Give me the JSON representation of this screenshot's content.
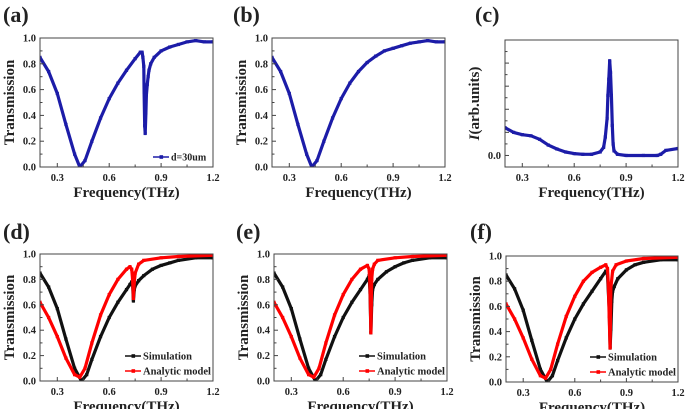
{
  "chart_data": [
    {
      "panel": "(a)",
      "type": "line",
      "xlabel": "Frequency(THz)",
      "ylabel": "Transmission",
      "xlim": [
        0.2,
        1.2
      ],
      "ylim": [
        0,
        1.0
      ],
      "xticks": [
        0.3,
        0.6,
        0.9,
        1.2
      ],
      "xtick_labels": [
        "0.3",
        "0.6",
        "0.9",
        "1.2"
      ],
      "yticks": [
        0,
        0.2,
        0.4,
        0.6,
        0.8,
        1.0
      ],
      "ytick_labels": [
        "0.0",
        "0.2",
        "0.4",
        "0.6",
        "0.8",
        "1.0"
      ],
      "legend_position": "bottom-right",
      "series": [
        {
          "name": "d=30um",
          "color": "#1c1ca8",
          "x": [
            0.2,
            0.25,
            0.3,
            0.35,
            0.4,
            0.43,
            0.46,
            0.5,
            0.55,
            0.6,
            0.65,
            0.7,
            0.75,
            0.78,
            0.79,
            0.795,
            0.8,
            0.802,
            0.805,
            0.808,
            0.812,
            0.815,
            0.82,
            0.825,
            0.83,
            0.84,
            0.86,
            0.9,
            0.95,
            1.0,
            1.05,
            1.1,
            1.15,
            1.2
          ],
          "y": [
            0.85,
            0.74,
            0.57,
            0.33,
            0.1,
            0.0,
            0.05,
            0.2,
            0.38,
            0.53,
            0.65,
            0.75,
            0.84,
            0.89,
            0.89,
            0.85,
            0.78,
            0.58,
            0.32,
            0.26,
            0.42,
            0.56,
            0.64,
            0.7,
            0.75,
            0.8,
            0.85,
            0.9,
            0.93,
            0.95,
            0.97,
            0.98,
            0.97,
            0.97
          ]
        }
      ]
    },
    {
      "panel": "(b)",
      "type": "line",
      "xlabel": "Frequency(THz)",
      "ylabel": "Transmission",
      "xlim": [
        0.2,
        1.2
      ],
      "ylim": [
        0,
        1.0
      ],
      "xticks": [
        0.3,
        0.6,
        0.9,
        1.2
      ],
      "xtick_labels": [
        "0.3",
        "0.6",
        "0.9",
        "1.2"
      ],
      "yticks": [
        0,
        0.2,
        0.4,
        0.6,
        0.8,
        1.0
      ],
      "ytick_labels": [
        "0.0",
        "0.2",
        "0.4",
        "0.6",
        "0.8",
        "1.0"
      ],
      "series": [
        {
          "color": "#1c1ca8",
          "x": [
            0.2,
            0.25,
            0.3,
            0.35,
            0.4,
            0.43,
            0.46,
            0.5,
            0.55,
            0.6,
            0.65,
            0.7,
            0.75,
            0.8,
            0.85,
            0.9,
            0.95,
            1.0,
            1.05,
            1.1,
            1.15,
            1.2
          ],
          "y": [
            0.85,
            0.74,
            0.57,
            0.33,
            0.1,
            0.0,
            0.05,
            0.2,
            0.38,
            0.53,
            0.65,
            0.74,
            0.81,
            0.86,
            0.9,
            0.92,
            0.94,
            0.96,
            0.97,
            0.98,
            0.97,
            0.97
          ]
        }
      ]
    },
    {
      "panel": "(c)",
      "type": "line",
      "xlabel": "Frequency(THz)",
      "ylabel_italic": "I",
      "ylabel": "(arb.units)",
      "xlim": [
        0.2,
        1.2
      ],
      "ylim": [
        -0.5,
        5
      ],
      "xticks": [
        0.3,
        0.6,
        0.9,
        1.2
      ],
      "xtick_labels": [
        "0.3",
        "0.6",
        "0.9",
        "1.2"
      ],
      "yticks": [
        0,
        1,
        2,
        3,
        4
      ],
      "ytick_labels": [
        "0.0",
        "",
        "",
        "",
        ""
      ],
      "series": [
        {
          "color": "#1c1ca8",
          "x": [
            0.2,
            0.25,
            0.3,
            0.35,
            0.4,
            0.45,
            0.5,
            0.55,
            0.6,
            0.65,
            0.7,
            0.75,
            0.77,
            0.78,
            0.79,
            0.795,
            0.8,
            0.805,
            0.81,
            0.815,
            0.82,
            0.825,
            0.83,
            0.85,
            0.9,
            1.0,
            1.08,
            1.1,
            1.13,
            1.2
          ],
          "y": [
            1.2,
            1.0,
            0.9,
            0.85,
            0.7,
            0.45,
            0.28,
            0.15,
            0.08,
            0.05,
            0.05,
            0.15,
            0.35,
            0.8,
            1.6,
            2.6,
            3.3,
            4.1,
            3.6,
            2.6,
            1.3,
            0.5,
            0.2,
            0.05,
            0.0,
            0.0,
            0.0,
            0.05,
            0.22,
            0.3
          ]
        }
      ]
    },
    {
      "panel": "(d)",
      "type": "line",
      "xlabel": "Frequency(THz)",
      "ylabel": "Transmission",
      "xlim": [
        0.2,
        1.2
      ],
      "ylim": [
        0,
        1.0
      ],
      "xticks": [
        0.3,
        0.6,
        0.9,
        1.2
      ],
      "xtick_labels": [
        "0.3",
        "0.6",
        "0.9",
        "1.2"
      ],
      "yticks": [
        0,
        0.2,
        0.4,
        0.6,
        0.8,
        1.0
      ],
      "ytick_labels": [
        "0.0",
        "0.2",
        "0.4",
        "0.6",
        "0.8",
        "1.0"
      ],
      "legend_position": "bottom-right",
      "series": [
        {
          "name": "Simulation",
          "color": "#111111",
          "x": [
            0.2,
            0.25,
            0.3,
            0.35,
            0.4,
            0.44,
            0.47,
            0.5,
            0.55,
            0.6,
            0.65,
            0.7,
            0.72,
            0.73,
            0.735,
            0.74,
            0.745,
            0.75,
            0.77,
            0.8,
            0.85,
            0.9,
            0.95,
            1.0,
            1.1,
            1.2
          ],
          "y": [
            0.85,
            0.74,
            0.57,
            0.33,
            0.1,
            0.0,
            0.05,
            0.17,
            0.35,
            0.5,
            0.62,
            0.72,
            0.76,
            0.78,
            0.76,
            0.63,
            0.72,
            0.75,
            0.79,
            0.83,
            0.88,
            0.91,
            0.93,
            0.95,
            0.97,
            0.97
          ]
        },
        {
          "name": "Analytic model",
          "color": "#ff0000",
          "x": [
            0.2,
            0.25,
            0.3,
            0.35,
            0.4,
            0.43,
            0.46,
            0.5,
            0.55,
            0.6,
            0.65,
            0.7,
            0.72,
            0.73,
            0.735,
            0.74,
            0.745,
            0.75,
            0.77,
            0.8,
            0.9,
            1.0,
            1.2
          ],
          "y": [
            0.62,
            0.5,
            0.35,
            0.18,
            0.05,
            0.03,
            0.1,
            0.3,
            0.52,
            0.68,
            0.8,
            0.88,
            0.9,
            0.88,
            0.8,
            0.65,
            0.78,
            0.85,
            0.92,
            0.95,
            0.97,
            0.98,
            0.99
          ]
        }
      ]
    },
    {
      "panel": "(e)",
      "type": "line",
      "xlabel": "Frequency(THz)",
      "ylabel": "Transmission",
      "xlim": [
        0.2,
        1.2
      ],
      "ylim": [
        0,
        1.0
      ],
      "xticks": [
        0.3,
        0.6,
        0.9,
        1.2
      ],
      "xtick_labels": [
        "0.3",
        "0.6",
        "0.9",
        "1.2"
      ],
      "yticks": [
        0,
        0.2,
        0.4,
        0.6,
        0.8,
        1.0
      ],
      "ytick_labels": [
        "0.0",
        "0.2",
        "0.4",
        "0.6",
        "0.8",
        "1.0"
      ],
      "legend_position": "bottom-right",
      "series": [
        {
          "name": "Simulation",
          "color": "#111111",
          "x": [
            0.2,
            0.25,
            0.3,
            0.35,
            0.4,
            0.44,
            0.47,
            0.5,
            0.55,
            0.6,
            0.65,
            0.7,
            0.74,
            0.75,
            0.755,
            0.76,
            0.765,
            0.77,
            0.78,
            0.8,
            0.85,
            0.9,
            0.95,
            1.0,
            1.1,
            1.2
          ],
          "y": [
            0.85,
            0.74,
            0.57,
            0.33,
            0.1,
            0.0,
            0.05,
            0.17,
            0.35,
            0.5,
            0.62,
            0.72,
            0.8,
            0.83,
            0.7,
            0.38,
            0.6,
            0.72,
            0.76,
            0.8,
            0.86,
            0.9,
            0.93,
            0.95,
            0.97,
            0.97
          ]
        },
        {
          "name": "Analytic model",
          "color": "#ff0000",
          "x": [
            0.2,
            0.25,
            0.3,
            0.35,
            0.4,
            0.43,
            0.46,
            0.5,
            0.55,
            0.6,
            0.65,
            0.7,
            0.74,
            0.75,
            0.755,
            0.76,
            0.765,
            0.77,
            0.78,
            0.8,
            0.9,
            1.0,
            1.2
          ],
          "y": [
            0.62,
            0.5,
            0.35,
            0.18,
            0.05,
            0.03,
            0.1,
            0.3,
            0.52,
            0.68,
            0.8,
            0.88,
            0.91,
            0.88,
            0.75,
            0.38,
            0.8,
            0.88,
            0.92,
            0.95,
            0.97,
            0.98,
            0.99
          ]
        }
      ]
    },
    {
      "panel": "(f)",
      "type": "line",
      "xlabel": "Frequency(THz)",
      "ylabel": "Transmission",
      "xlim": [
        0.2,
        1.2
      ],
      "ylim": [
        0,
        1.0
      ],
      "xticks": [
        0.3,
        0.6,
        0.9,
        1.2
      ],
      "xtick_labels": [
        "0.3",
        "0.6",
        "0.9",
        "1.2"
      ],
      "yticks": [
        0,
        0.2,
        0.4,
        0.6,
        0.8,
        1.0
      ],
      "ytick_labels": [
        "0.0",
        "0.2",
        "0.4",
        "0.6",
        "0.8",
        "1.0"
      ],
      "legend_position": "bottom-right",
      "series": [
        {
          "name": "Simulation",
          "color": "#111111",
          "x": [
            0.2,
            0.25,
            0.3,
            0.35,
            0.4,
            0.44,
            0.47,
            0.5,
            0.55,
            0.6,
            0.65,
            0.7,
            0.75,
            0.78,
            0.79,
            0.8,
            0.805,
            0.81,
            0.815,
            0.82,
            0.83,
            0.85,
            0.9,
            0.95,
            1.0,
            1.1,
            1.2
          ],
          "y": [
            0.85,
            0.74,
            0.57,
            0.33,
            0.1,
            0.0,
            0.05,
            0.17,
            0.35,
            0.5,
            0.62,
            0.72,
            0.82,
            0.88,
            0.85,
            0.58,
            0.27,
            0.42,
            0.64,
            0.72,
            0.76,
            0.82,
            0.89,
            0.93,
            0.95,
            0.97,
            0.97
          ]
        },
        {
          "name": "Analytic model",
          "color": "#ff0000",
          "x": [
            0.2,
            0.25,
            0.3,
            0.35,
            0.4,
            0.43,
            0.46,
            0.5,
            0.55,
            0.6,
            0.65,
            0.7,
            0.75,
            0.78,
            0.79,
            0.795,
            0.8,
            0.805,
            0.81,
            0.82,
            0.84,
            0.9,
            1.0,
            1.2
          ],
          "y": [
            0.62,
            0.5,
            0.35,
            0.18,
            0.05,
            0.03,
            0.1,
            0.3,
            0.52,
            0.68,
            0.8,
            0.87,
            0.91,
            0.93,
            0.9,
            0.78,
            0.52,
            0.27,
            0.75,
            0.88,
            0.93,
            0.96,
            0.98,
            0.99
          ]
        }
      ]
    }
  ]
}
